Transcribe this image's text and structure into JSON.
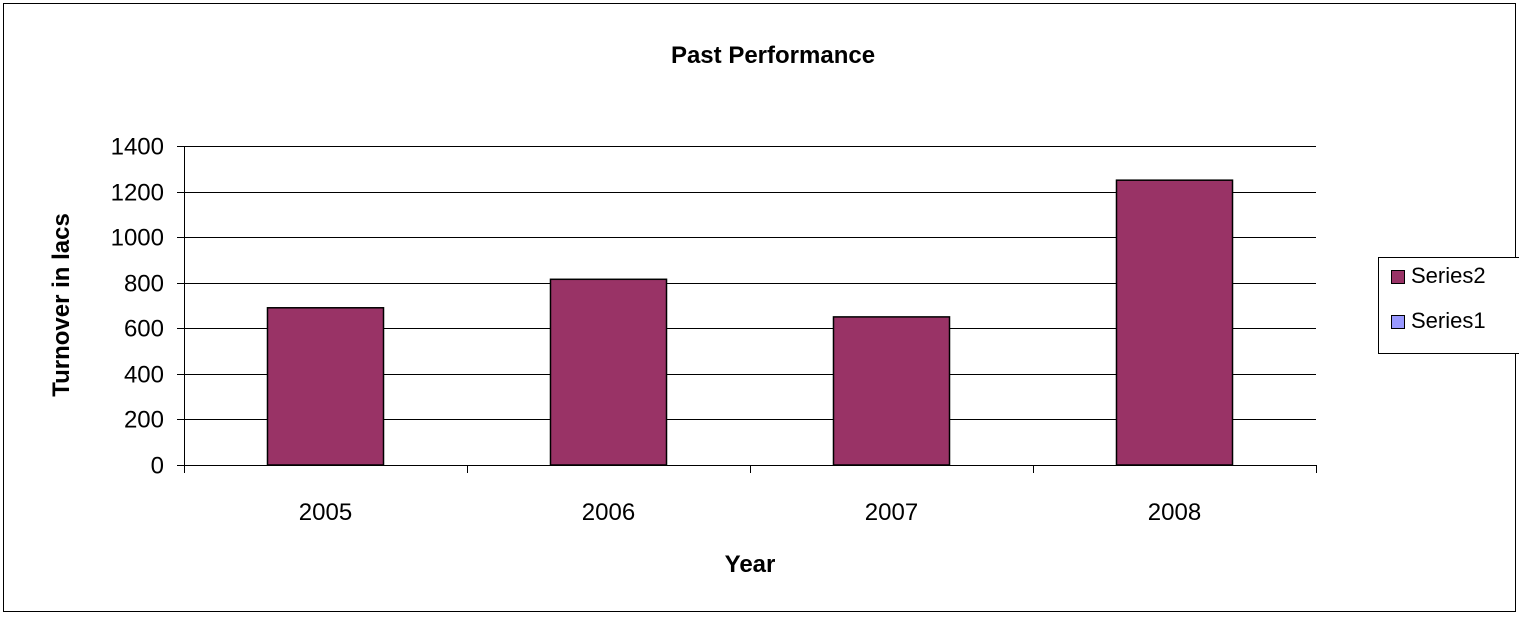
{
  "chart_data": {
    "type": "bar",
    "title": "Past Performance",
    "xlabel": "Year",
    "ylabel": "Turnover in lacs",
    "categories": [
      "2005",
      "2006",
      "2007",
      "2008"
    ],
    "ylim": [
      0,
      1400
    ],
    "yticks": [
      0,
      200,
      400,
      600,
      800,
      1000,
      1200,
      1400
    ],
    "grid": true,
    "legend_position": "right",
    "series": [
      {
        "name": "Series2",
        "values": [
          690,
          815,
          650,
          1250
        ],
        "color": "#993366"
      },
      {
        "name": "Series1",
        "values": [
          0,
          0,
          0,
          0
        ],
        "color": "#9999ff"
      }
    ]
  },
  "colors": {
    "bar_fill": "#993366",
    "bar_stroke": "#000000",
    "gridline": "#000000",
    "background": "#ffffff"
  }
}
